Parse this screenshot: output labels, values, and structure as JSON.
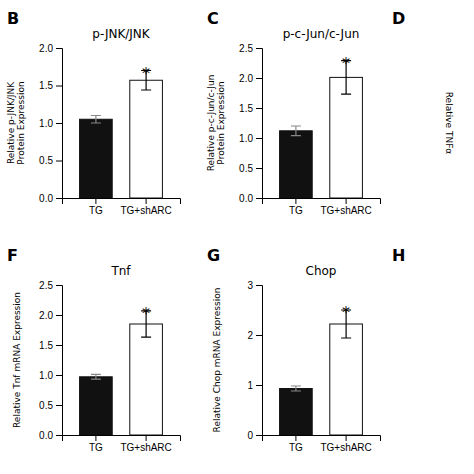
{
  "chart_data": [
    {
      "type": "bar",
      "panel_label": "B",
      "title": "p-JNK/JNK",
      "ylabel": "Relative p-JNK/JNK\nProtein Expression",
      "categories": [
        "TG",
        "TG+shARC"
      ],
      "values": [
        1.05,
        1.57
      ],
      "errors": [
        0.05,
        0.13
      ],
      "colors": [
        "#111111",
        "#ffffff"
      ],
      "ylim": [
        0,
        2.0
      ],
      "yticks": [
        {
          "value": 0.0,
          "label": "0.0"
        },
        0.5,
        {
          "value": 1.0,
          "label": "1.0"
        },
        1.5,
        {
          "value": 2.0,
          "label": "2.0"
        }
      ],
      "annotations": [
        {
          "text": "*",
          "category": "TG+shARC"
        }
      ]
    },
    {
      "type": "bar",
      "panel_label": "C",
      "title": "p-c-Jun/c-Jun",
      "ylabel": "Relative p-c-Jun/c-Jun\nProtein Expression",
      "categories": [
        "TG",
        "TG+shARC"
      ],
      "values": [
        1.12,
        2.01
      ],
      "errors": [
        0.08,
        0.28
      ],
      "colors": [
        "#111111",
        "#ffffff"
      ],
      "ylim": [
        0,
        2.5
      ],
      "yticks": [
        {
          "value": 0.0,
          "label": "0.0"
        },
        0.5,
        {
          "value": 1.0,
          "label": "1.0"
        },
        1.5,
        {
          "value": 2.0,
          "label": "2.0"
        },
        2.5
      ],
      "annotations": [
        {
          "text": "*",
          "category": "TG+shARC"
        }
      ]
    },
    {
      "type": "bar",
      "panel_label": "F",
      "title": "Tnf",
      "ylabel": "Relative Tnf mRNA Expression",
      "categories": [
        "TG",
        "TG+shARC"
      ],
      "values": [
        0.97,
        1.85
      ],
      "errors": [
        0.04,
        0.22
      ],
      "colors": [
        "#111111",
        "#ffffff"
      ],
      "ylim": [
        0,
        2.5
      ],
      "yticks": [
        {
          "value": 0.0,
          "label": "0.0"
        },
        0.5,
        {
          "value": 1.0,
          "label": "1.0"
        },
        1.5,
        {
          "value": 2.0,
          "label": "2.0"
        },
        2.5
      ],
      "annotations": [
        {
          "text": "*",
          "category": "TG+shARC"
        }
      ]
    },
    {
      "type": "bar",
      "panel_label": "G",
      "title": "Chop",
      "ylabel": "Relative Chop mRNA Expression",
      "categories": [
        "TG",
        "TG+shARC"
      ],
      "values": [
        0.93,
        2.22
      ],
      "errors": [
        0.05,
        0.28
      ],
      "colors": [
        "#111111",
        "#ffffff"
      ],
      "ylim": [
        0,
        3.0
      ],
      "yticks": [
        0,
        1,
        2,
        3
      ],
      "annotations": [
        {
          "text": "*",
          "category": "TG+shARC"
        }
      ]
    },
    {
      "type": "empty",
      "panel_label": "D",
      "ylabel": "Relative TNFα"
    },
    {
      "type": "empty",
      "panel_label": "H"
    }
  ]
}
